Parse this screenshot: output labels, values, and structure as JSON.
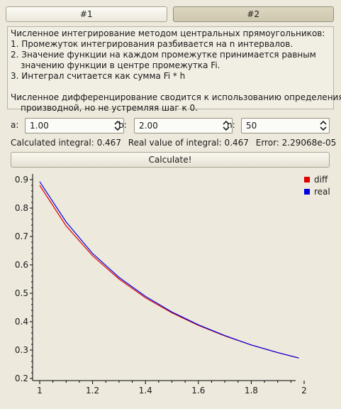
{
  "tabs": [
    {
      "label": "#1",
      "active": false
    },
    {
      "label": "#2",
      "active": true
    }
  ],
  "description": {
    "line1": "Численное интегрирование методом центральных прямоугольников:",
    "line2": "1. Промежуток интегрирования разбивается на n интервалов.",
    "line3": "2. Значение функции на каждом промежутке принимается равным",
    "line4": "значению функции в центре промежутка Fi.",
    "line5": "3. Интеграл считается как сумма Fi * h",
    "line6": "Численное дифференцирование сводится к использованию определения",
    "line7": "производной, но не устремляя шаг к 0."
  },
  "params": {
    "a_label": "a:",
    "a_value": "1.00",
    "b_label": "b:",
    "b_value": "2.00",
    "n_label": "n:",
    "n_value": "50"
  },
  "result": {
    "calculated": "Calculated integral: 0.467",
    "real": "Real value of integral: 0.467",
    "error": "Error: 2.29068e-05"
  },
  "calculate_label": "Calculate!",
  "colors": {
    "diff": "#e00000",
    "real": "#0000e0",
    "plot_bg": "#ede9dc"
  },
  "chart_data": {
    "type": "line",
    "xlim": [
      1,
      2
    ],
    "ylim": [
      0.2,
      0.9
    ],
    "xticks": [
      "1",
      "1.2",
      "1.4",
      "1.6",
      "1.8",
      "2"
    ],
    "yticks": [
      "0.2",
      "0.3",
      "0.4",
      "0.5",
      "0.6",
      "0.7",
      "0.8",
      "0.9"
    ],
    "legend_position": "top-right",
    "series": [
      {
        "name": "diff",
        "color": "#e00000",
        "x": [
          1.0,
          1.1,
          1.2,
          1.3,
          1.4,
          1.5,
          1.6,
          1.7,
          1.8,
          1.9,
          1.98
        ],
        "y": [
          0.88,
          0.737,
          0.632,
          0.55,
          0.484,
          0.431,
          0.387,
          0.35,
          0.318,
          0.291,
          0.272
        ]
      },
      {
        "name": "real",
        "color": "#0000e0",
        "x": [
          1.0,
          1.1,
          1.2,
          1.3,
          1.4,
          1.5,
          1.6,
          1.7,
          1.8,
          1.9,
          1.98
        ],
        "y": [
          0.893,
          0.751,
          0.64,
          0.556,
          0.489,
          0.434,
          0.389,
          0.351,
          0.318,
          0.291,
          0.272
        ]
      }
    ]
  }
}
